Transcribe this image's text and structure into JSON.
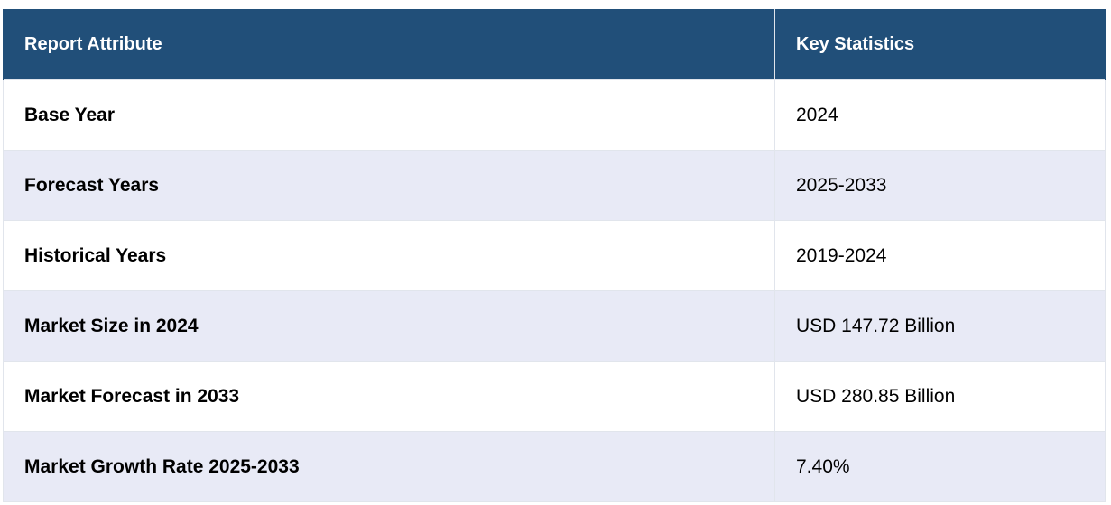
{
  "table": {
    "header": {
      "attribute": "Report Attribute",
      "statistics": "Key Statistics"
    },
    "rows": [
      {
        "attribute": "Base Year",
        "value": "2024"
      },
      {
        "attribute": "Forecast Years",
        "value": "2025-2033"
      },
      {
        "attribute": "Historical Years",
        "value": "2019-2024"
      },
      {
        "attribute": "Market Size in 2024",
        "value": "USD 147.72 Billion"
      },
      {
        "attribute": "Market Forecast in 2033",
        "value": "USD 280.85 Billion"
      },
      {
        "attribute": "Market Growth Rate 2025-2033",
        "value": "7.40%"
      }
    ]
  },
  "colors": {
    "header_background": "#214f79",
    "header_text": "#ffffff",
    "row_alt_background": "#e8eaf6",
    "row_background": "#ffffff",
    "border": "#e1e5ec"
  }
}
